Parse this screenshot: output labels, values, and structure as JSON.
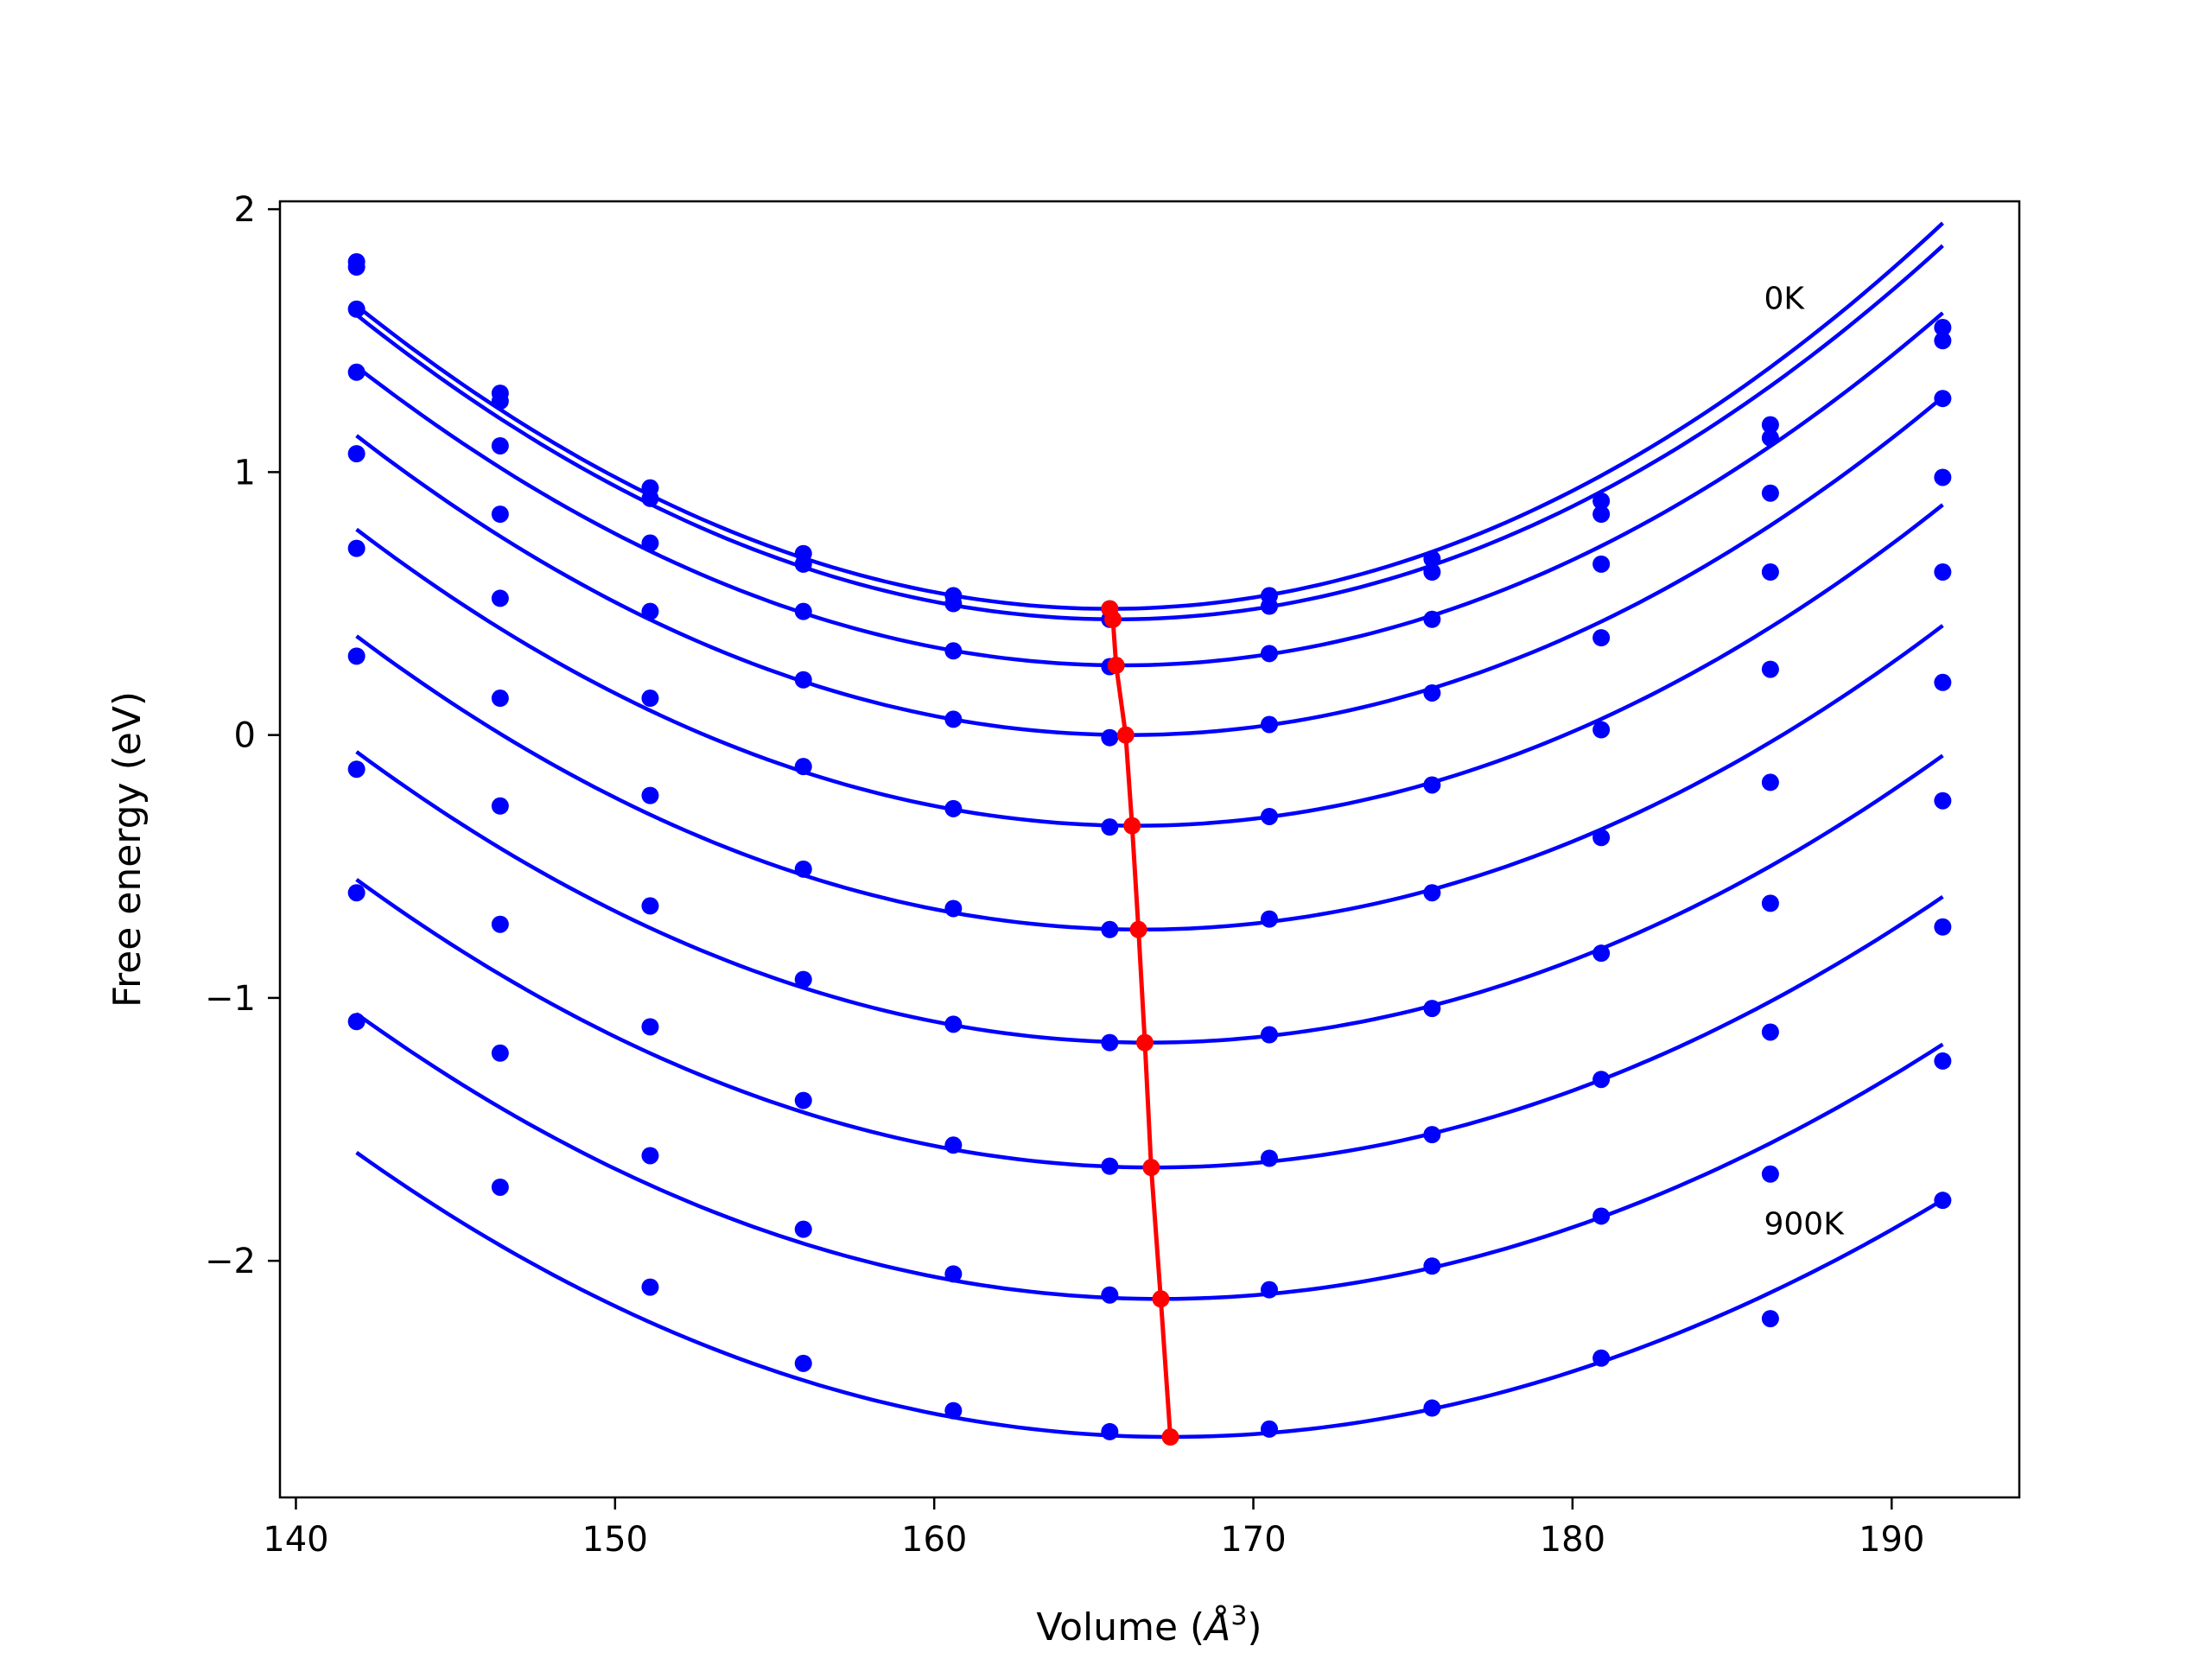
{
  "chart_data": {
    "type": "line",
    "title": "",
    "xlabel": "Volume (",
    "xlabel_symbol": "Å",
    "xlabel_exp": "3",
    "xlabel_close": ")",
    "ylabel": "Free energy (eV)",
    "xlim": [
      139.5,
      194
    ],
    "ylim": [
      -2.9,
      2.03
    ],
    "xticks": [
      140,
      150,
      160,
      170,
      180,
      190
    ],
    "yticks": [
      -2,
      -1,
      0,
      1,
      2
    ],
    "ytick_labels": [
      "−2",
      "−1",
      "0",
      "1",
      "2"
    ],
    "grid": false,
    "legend": "none",
    "colors": {
      "curves": "#0000ff",
      "minima": "#ff0000"
    },
    "annotations": [
      {
        "text": "0K",
        "x": 186.0,
        "y": 1.62
      },
      {
        "text": "900K",
        "x": 186.0,
        "y": -1.9
      }
    ],
    "volumes": [
      141.9,
      146.4,
      151.1,
      155.9,
      160.6,
      165.5,
      170.5,
      175.6,
      180.9,
      186.2,
      191.6
    ],
    "series": [
      {
        "fit": [
          141.9,
          191.6,
          165.5,
          0.48,
          0.00211,
          1.68e-06
        ],
        "points": [
          1.8,
          1.3,
          0.94,
          0.69,
          0.53,
          0.48,
          0.53,
          0.67,
          0.89,
          1.18,
          1.55
        ],
        "min": [
          165.5,
          0.48
        ]
      },
      {
        "fit": [
          141.9,
          191.6,
          165.7,
          0.44,
          0.00208,
          1.5e-06
        ],
        "points": [
          1.78,
          1.27,
          0.9,
          0.65,
          0.5,
          0.44,
          0.49,
          0.62,
          0.84,
          1.13,
          1.5
        ],
        "min": [
          165.6,
          0.44
        ]
      },
      {
        "fit": [
          141.9,
          191.6,
          165.9,
          0.265,
          0.002,
          1.15e-06
        ],
        "points": [
          1.62,
          1.1,
          0.73,
          0.47,
          0.32,
          0.26,
          0.31,
          0.44,
          0.65,
          0.92,
          1.28
        ],
        "min": [
          165.7,
          0.265
        ]
      },
      {
        "fit": [
          141.9,
          191.6,
          166.1,
          0.0,
          0.00196,
          6.4e-07
        ],
        "points": [
          1.38,
          0.84,
          0.47,
          0.21,
          0.06,
          -0.01,
          0.04,
          0.16,
          0.37,
          0.62,
          0.98
        ],
        "min": [
          166.0,
          0.0
        ]
      },
      {
        "fit": [
          141.9,
          191.6,
          166.3,
          -0.345,
          0.0019,
          2.8e-07
        ],
        "points": [
          1.07,
          0.52,
          0.14,
          -0.12,
          -0.28,
          -0.35,
          -0.31,
          -0.19,
          0.02,
          0.25,
          0.62
        ],
        "min": [
          166.2,
          -0.345
        ]
      },
      {
        "fit": [
          141.9,
          191.6,
          166.5,
          -0.74,
          0.00184,
          -1.8e-07
        ],
        "points": [
          0.71,
          0.14,
          -0.23,
          -0.51,
          -0.66,
          -0.74,
          -0.7,
          -0.6,
          -0.39,
          -0.18,
          0.2
        ],
        "min": [
          166.4,
          -0.74
        ]
      },
      {
        "fit": [
          141.9,
          191.6,
          166.7,
          -1.17,
          0.00178,
          -7.5e-07
        ],
        "points": [
          0.3,
          -0.27,
          -0.65,
          -0.93,
          -1.1,
          -1.17,
          -1.14,
          -1.04,
          -0.83,
          -0.64,
          -0.25
        ],
        "min": [
          166.6,
          -1.17
        ]
      },
      {
        "fit": [
          141.9,
          191.6,
          166.9,
          -1.645,
          0.00172,
          -1.3e-06
        ],
        "points": [
          -0.13,
          -0.72,
          -1.11,
          -1.39,
          -1.56,
          -1.64,
          -1.61,
          -1.52,
          -1.31,
          -1.13,
          -0.73
        ],
        "min": [
          166.8,
          -1.645
        ]
      },
      {
        "fit": [
          141.9,
          191.6,
          167.1,
          -2.145,
          0.00166,
          -1.9e-06
        ],
        "points": [
          -0.6,
          -1.21,
          -1.6,
          -1.88,
          -2.05,
          -2.13,
          -2.11,
          -2.02,
          -1.83,
          -1.67,
          -1.24
        ],
        "min": [
          167.1,
          -2.145
        ]
      },
      {
        "fit": [
          141.9,
          191.6,
          167.4,
          -2.67,
          0.0016,
          -2.5e-06
        ],
        "points": [
          -1.09,
          -1.72,
          -2.1,
          -2.39,
          -2.57,
          -2.65,
          -2.64,
          -2.56,
          -2.37,
          -2.22,
          -1.77
        ],
        "min": [
          167.4,
          -2.67
        ]
      }
    ]
  }
}
